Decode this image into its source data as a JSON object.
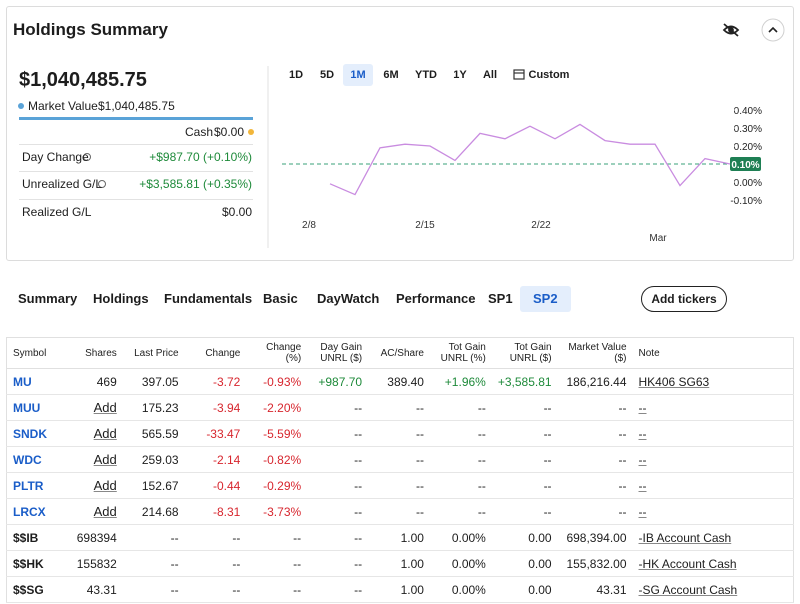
{
  "header": {
    "title": "Holdings Summary"
  },
  "summary": {
    "total": "$1,040,485.75",
    "market_value_label": "Market Value",
    "market_value": "$1,040,485.75",
    "cash_label": "Cash",
    "cash": "$0.00",
    "rows": [
      {
        "label": "Day Change",
        "value": "+$987.70 (+0.10%)"
      },
      {
        "label": "Unrealized G/L",
        "value": "+$3,585.81 (+0.35%)"
      },
      {
        "label": "Realized G/L",
        "value": "$0.00"
      }
    ]
  },
  "ranges": {
    "items": [
      "1D",
      "5D",
      "1M",
      "6M",
      "YTD",
      "1Y",
      "All",
      "Custom"
    ],
    "selected_index": 2
  },
  "chart_data": {
    "type": "line",
    "color": "#c98ce0",
    "values": [
      -0.01,
      -0.07,
      0.19,
      0.21,
      0.2,
      0.12,
      0.27,
      0.24,
      0.31,
      0.24,
      0.32,
      0.23,
      0.21,
      0.21,
      -0.02,
      0.13,
      0.1
    ],
    "ylim": [
      -0.15,
      0.45
    ],
    "yticks": [
      {
        "value": 0.4,
        "label": "0.40%"
      },
      {
        "value": 0.3,
        "label": "0.30%"
      },
      {
        "value": 0.2,
        "label": "0.20%"
      },
      {
        "value": 0.0,
        "label": "0.00%"
      },
      {
        "value": -0.1,
        "label": "-0.10%"
      }
    ],
    "reference": {
      "value": 0.1,
      "label": "0.10%"
    },
    "x_labels": [
      "2/8",
      "2/15",
      "2/22",
      "Mar"
    ]
  },
  "tabs": {
    "items": [
      "Summary",
      "Holdings",
      "Fundamentals",
      "Basic",
      "DayWatch",
      "Performance",
      "SP1",
      "SP2"
    ],
    "selected_index": 7,
    "add_button": "Add tickers"
  },
  "table": {
    "columns": [
      "Symbol",
      "Shares",
      "Last Price",
      "Change",
      "Change (%)",
      "Day Gain UNRL ($)",
      "AC/Share",
      "Tot Gain UNRL (%)",
      "Tot Gain UNRL ($)",
      "Market Value ($)",
      "Note"
    ],
    "rows": [
      [
        "MU",
        "469",
        "397.05",
        "-3.72",
        "-0.93%",
        "+987.70",
        "389.40",
        "+1.96%",
        "+3,585.81",
        "186,216.44",
        "HK406 SG63"
      ],
      [
        "MUU",
        "Add",
        "175.23",
        "-3.94",
        "-2.20%",
        "--",
        "--",
        "--",
        "--",
        "--",
        "--"
      ],
      [
        "SNDK",
        "Add",
        "565.59",
        "-33.47",
        "-5.59%",
        "--",
        "--",
        "--",
        "--",
        "--",
        "--"
      ],
      [
        "WDC",
        "Add",
        "259.03",
        "-2.14",
        "-0.82%",
        "--",
        "--",
        "--",
        "--",
        "--",
        "--"
      ],
      [
        "PLTR",
        "Add",
        "152.67",
        "-0.44",
        "-0.29%",
        "--",
        "--",
        "--",
        "--",
        "--",
        "--"
      ],
      [
        "LRCX",
        "Add",
        "214.68",
        "-8.31",
        "-3.73%",
        "--",
        "--",
        "--",
        "--",
        "--",
        "--"
      ],
      [
        "$$IB",
        "698394",
        "--",
        "--",
        "--",
        "--",
        "1.00",
        "0.00%",
        "0.00",
        "698,394.00",
        "-IB Account Cash"
      ],
      [
        "$$HK",
        "155832",
        "--",
        "--",
        "--",
        "--",
        "1.00",
        "0.00%",
        "0.00",
        "155,832.00",
        "-HK Account Cash"
      ],
      [
        "$$SG",
        "43.31",
        "--",
        "--",
        "--",
        "--",
        "1.00",
        "0.00%",
        "0.00",
        "43.31",
        "-SG Account Cash"
      ]
    ]
  }
}
